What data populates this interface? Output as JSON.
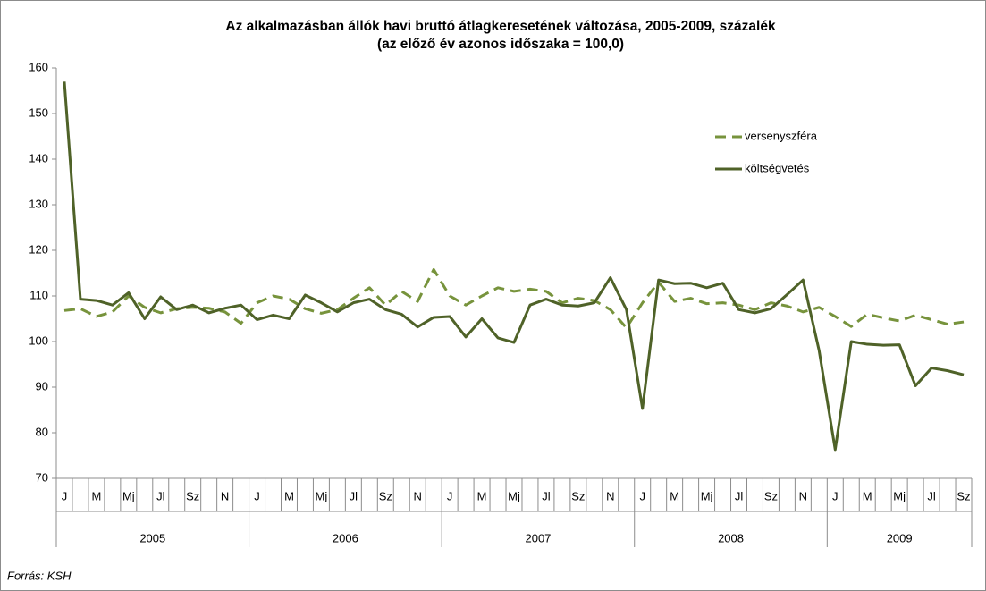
{
  "chart_data": {
    "type": "line",
    "title": "Az alkalmazásban állók havi bruttó átlagkeresetének változása, 2005-2009, százalék",
    "subtitle": "(az előző év azonos időszaka = 100,0)",
    "source": "Forrás: KSH",
    "categories": [
      "J",
      null,
      "M",
      null,
      "Mj",
      null,
      "Jl",
      null,
      "Sz",
      null,
      "N",
      null,
      "J",
      null,
      "M",
      null,
      "Mj",
      null,
      "Jl",
      null,
      "Sz",
      null,
      "N",
      null,
      "J",
      null,
      "M",
      null,
      "Mj",
      null,
      "Jl",
      null,
      "Sz",
      null,
      "N",
      null,
      "J",
      null,
      "M",
      null,
      "Mj",
      null,
      "Jl",
      null,
      "Sz",
      null,
      "N",
      null,
      "J",
      null,
      "M",
      null,
      "Mj",
      null,
      "Jl",
      null,
      "Sz"
    ],
    "year_groups": [
      "2005",
      "2006",
      "2007",
      "2008",
      "2009"
    ],
    "series": [
      {
        "name": "versenyszféra",
        "color": "#77933c",
        "dash": true,
        "values": [
          106.8,
          107.2,
          105.5,
          106.5,
          110,
          107.5,
          106.3,
          107.2,
          107.5,
          107.3,
          106.5,
          104,
          108.5,
          110,
          109.3,
          107.2,
          106.2,
          107,
          109.5,
          111.8,
          108,
          111,
          108.8,
          115.8,
          110,
          108,
          110,
          111.8,
          111,
          111.5,
          111,
          108.5,
          109.5,
          109,
          107,
          103,
          108.5,
          113,
          108.8,
          109.5,
          108.3,
          108.5,
          108,
          107,
          108.5,
          107.8,
          106.5,
          107.5,
          105.5,
          103.3,
          106,
          105.2,
          104.5,
          105.8,
          104.8,
          103.8,
          104.3
        ]
      },
      {
        "name": "költségvetés",
        "color": "#4f6228",
        "dash": false,
        "values": [
          157,
          109.3,
          109,
          108,
          110.7,
          105,
          109.8,
          107,
          108,
          106.3,
          107.3,
          108,
          104.8,
          105.8,
          105,
          110.2,
          108.5,
          106.5,
          108.5,
          109.3,
          107,
          106,
          103.2,
          105.3,
          105.5,
          101,
          105,
          100.8,
          99.8,
          108,
          109.3,
          108,
          107.8,
          108.5,
          114,
          107,
          85.3,
          113.5,
          112.7,
          112.8,
          111.8,
          112.8,
          107,
          106.3,
          107.2,
          110.3,
          113.5,
          98,
          76.3,
          100,
          99.4,
          99.2,
          99.3,
          90.3,
          94.2,
          93.6,
          92.7
        ]
      }
    ],
    "ylim": [
      70,
      160
    ],
    "yticks": [
      70,
      80,
      90,
      100,
      110,
      120,
      130,
      140,
      150,
      160
    ],
    "grid": false,
    "legend": "right"
  }
}
